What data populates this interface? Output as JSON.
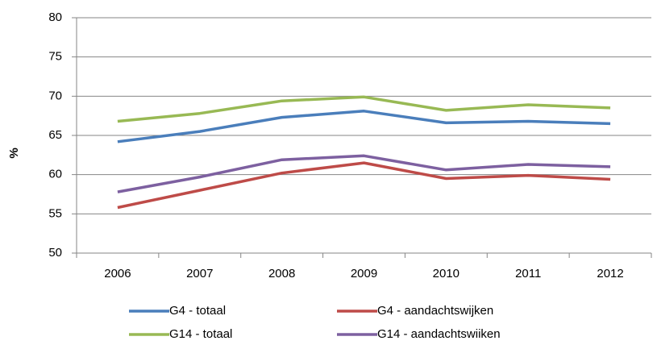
{
  "chart_data": {
    "type": "line",
    "y_label": "%",
    "categories": [
      "2006",
      "2007",
      "2008",
      "2009",
      "2010",
      "2011",
      "2012"
    ],
    "series": [
      {
        "name": "G4 - totaal",
        "color": "#4a7ebb",
        "values": [
          64.2,
          65.5,
          67.3,
          68.1,
          66.6,
          66.8,
          66.5
        ]
      },
      {
        "name": "G4 - aandachtswijken",
        "color": "#be4b48",
        "values": [
          55.8,
          58.0,
          60.2,
          61.5,
          59.5,
          59.9,
          59.4
        ]
      },
      {
        "name": "G14 - totaal",
        "color": "#98b954",
        "values": [
          66.8,
          67.8,
          69.4,
          69.9,
          68.2,
          68.9,
          68.5
        ]
      },
      {
        "name": "G14 - aandachtswiiken",
        "color": "#7d60a0",
        "values": [
          57.8,
          59.7,
          61.9,
          62.4,
          60.6,
          61.3,
          61.0
        ]
      }
    ],
    "ylim": [
      50,
      80
    ],
    "yticks": [
      50,
      55,
      60,
      65,
      70,
      75,
      80
    ],
    "grid": true
  }
}
